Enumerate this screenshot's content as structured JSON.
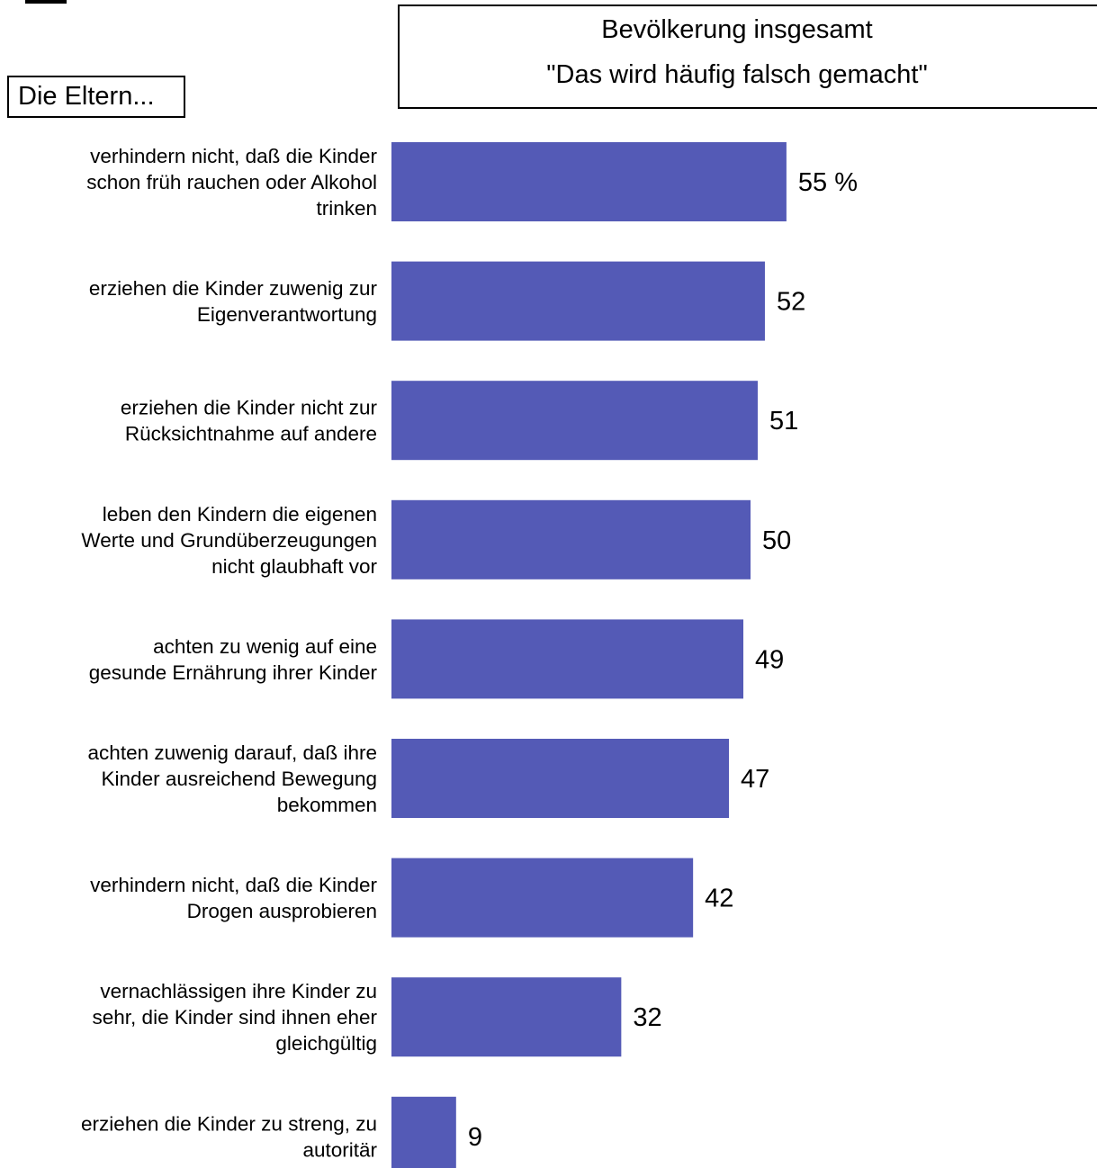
{
  "header": {
    "line1": "Bevölkerung insgesamt",
    "line2": "\"Das wird häufig falsch gemacht\""
  },
  "corner_label": "Die Eltern...",
  "chart_data": {
    "type": "bar",
    "orientation": "horizontal",
    "title": "",
    "xlabel": "",
    "ylabel": "",
    "xlim": [
      0,
      100
    ],
    "unit_suffix": " %",
    "bar_color": "#545ab6",
    "categories": [
      [
        "verhindern nicht, daß die Kinder",
        "schon früh rauchen oder Alkohol",
        "trinken"
      ],
      [
        "erziehen die Kinder zuwenig zur",
        "Eigenverantwortung"
      ],
      [
        "erziehen die Kinder nicht zur",
        "Rücksichtnahme auf andere"
      ],
      [
        "leben den Kindern die eigenen",
        "Werte und Grundüberzeugungen",
        "nicht glaubhaft vor"
      ],
      [
        "achten zu wenig auf eine",
        "gesunde Ernährung ihrer Kinder"
      ],
      [
        "achten zuwenig darauf, daß ihre",
        "Kinder ausreichend Bewegung",
        "bekommen"
      ],
      [
        "verhindern nicht, daß die Kinder",
        "Drogen ausprobieren"
      ],
      [
        "vernachlässigen ihre Kinder zu",
        "sehr, die Kinder sind ihnen eher",
        "gleichgültig"
      ],
      [
        "erziehen die Kinder zu streng, zu",
        "autoritär"
      ]
    ],
    "values": [
      55,
      52,
      51,
      50,
      49,
      47,
      42,
      32,
      9
    ],
    "value_labels": [
      "55 %",
      "52",
      "51",
      "50",
      "49",
      "47",
      "42",
      "32",
      "9"
    ]
  }
}
